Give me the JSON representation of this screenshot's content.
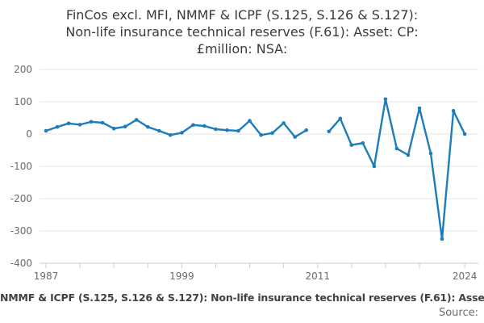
{
  "header": {
    "title_lines": [
      "FinCos excl. MFI, NMMF & ICPF (S.125, S.126 & S.127):",
      "Non-life insurance technical reserves (F.61): Asset: CP:",
      "£million: NSA:"
    ]
  },
  "footer": {
    "series_text": "NMMF & ICPF (S.125, S.126 & S.127): Non-life insurance technical reserves (F.61): Asse",
    "source_label": "Source:"
  },
  "chart_data": {
    "type": "line",
    "title": "FinCos excl. MFI, NMMF & ICPF (S.125, S.126 & S.127): Non-life insurance technical reserves (F.61): Asset: CP: £million: NSA:",
    "xlabel": "",
    "ylabel": "£million",
    "ylim": [
      -400,
      200
    ],
    "y_ticks": [
      200,
      100,
      0,
      -100,
      -200,
      -300,
      -400
    ],
    "x_tick_years": [
      1987,
      1990,
      1993,
      1996,
      1999,
      2002,
      2005,
      2008,
      2011,
      2014,
      2017,
      2020,
      2024
    ],
    "x_tick_labels": [
      "1987",
      "",
      "",
      "",
      "1999",
      "",
      "",
      "",
      "2011",
      "",
      "",
      "",
      "2024"
    ],
    "grid": true,
    "legend": "none",
    "gap_note": "value for 2011 is missing, line breaks",
    "colors": {
      "line": "#1d7cba",
      "grid": "#e6e6e6",
      "axis": "#c5cede",
      "labels": "#6b6b6b"
    },
    "years": [
      1987,
      1988,
      1989,
      1990,
      1991,
      1992,
      1993,
      1994,
      1995,
      1996,
      1997,
      1998,
      1999,
      2000,
      2001,
      2002,
      2003,
      2004,
      2005,
      2006,
      2007,
      2008,
      2009,
      2010,
      2011,
      2012,
      2013,
      2014,
      2015,
      2016,
      2017,
      2018,
      2019,
      2020,
      2021,
      2022,
      2023,
      2024
    ],
    "values": [
      10,
      22,
      33,
      29,
      38,
      35,
      17,
      23,
      44,
      22,
      10,
      -3,
      4,
      28,
      25,
      15,
      12,
      10,
      41,
      -3,
      3,
      34,
      -9,
      12,
      null,
      8,
      48,
      -34,
      -28,
      -100,
      108,
      -45,
      -65,
      80,
      -60,
      -325,
      72,
      0
    ]
  }
}
